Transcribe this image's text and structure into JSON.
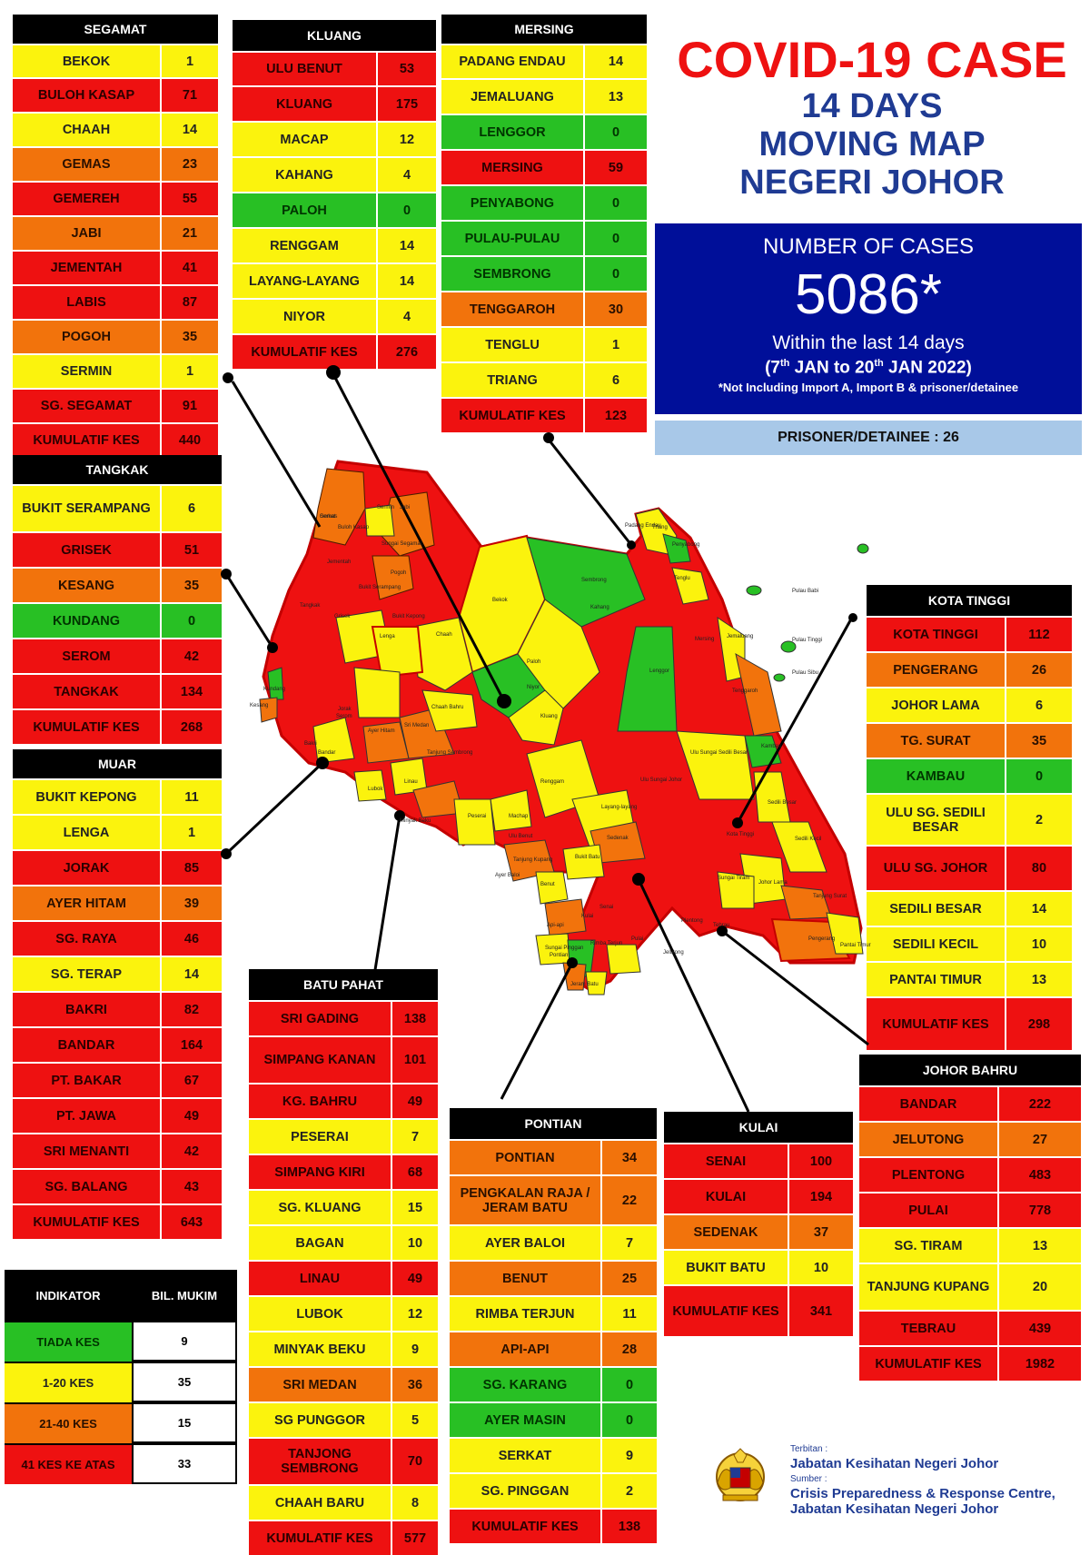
{
  "header": {
    "title": "COVID-19 CASE",
    "subtitle_lines": [
      "14 DAYS",
      "MOVING MAP",
      "NEGERI JOHOR"
    ]
  },
  "summary": {
    "label": "NUMBER OF CASES",
    "count": "5086*",
    "period_label": "Within the last 14 days",
    "date_range": {
      "open": "(7",
      "sup1": "th",
      "mid": " JAN to 20",
      "sup2": "th",
      "close": " JAN 2022)"
    },
    "note": "*Not Including Import A, Import B & prisoner/detainee",
    "prisoner": "PRISONER/DETAINEE : 26"
  },
  "colors": {
    "red": "#ee1111",
    "yellow": "#fbf30d",
    "orange": "#f2730c",
    "green": "#28c024",
    "title_red": "#ee1111",
    "title_blue": "#1f3b93",
    "box_blue": "#000f99",
    "prisoner_bg": "#a8c8e8"
  },
  "districts": {
    "segamat": {
      "title": "SEGAMAT",
      "rows": [
        {
          "name": "BEKOK",
          "value": "1",
          "level": "yellow"
        },
        {
          "name": "BULOH KASAP",
          "value": "71",
          "level": "red"
        },
        {
          "name": "CHAAH",
          "value": "14",
          "level": "yellow"
        },
        {
          "name": "GEMAS",
          "value": "23",
          "level": "orange"
        },
        {
          "name": "GEMEREH",
          "value": "55",
          "level": "red"
        },
        {
          "name": "JABI",
          "value": "21",
          "level": "orange"
        },
        {
          "name": "JEMENTAH",
          "value": "41",
          "level": "red"
        },
        {
          "name": "LABIS",
          "value": "87",
          "level": "red"
        },
        {
          "name": "POGOH",
          "value": "35",
          "level": "orange"
        },
        {
          "name": "SERMIN",
          "value": "1",
          "level": "yellow"
        },
        {
          "name": "SG. SEGAMAT",
          "value": "91",
          "level": "red"
        },
        {
          "name": "KUMULATIF KES",
          "value": "440",
          "level": "total"
        }
      ]
    },
    "kluang": {
      "title": "KLUANG",
      "rows": [
        {
          "name": "ULU BENUT",
          "value": "53",
          "level": "red"
        },
        {
          "name": "KLUANG",
          "value": "175",
          "level": "red"
        },
        {
          "name": "MACAP",
          "value": "12",
          "level": "yellow"
        },
        {
          "name": "KAHANG",
          "value": "4",
          "level": "yellow"
        },
        {
          "name": "PALOH",
          "value": "0",
          "level": "green"
        },
        {
          "name": "RENGGAM",
          "value": "14",
          "level": "yellow"
        },
        {
          "name": "LAYANG-LAYANG",
          "value": "14",
          "level": "yellow"
        },
        {
          "name": "NIYOR",
          "value": "4",
          "level": "yellow"
        },
        {
          "name": "KUMULATIF KES",
          "value": "276",
          "level": "total"
        }
      ]
    },
    "mersing": {
      "title": "MERSING",
      "rows": [
        {
          "name": "PADANG ENDAU",
          "value": "14",
          "level": "yellow"
        },
        {
          "name": "JEMALUANG",
          "value": "13",
          "level": "yellow"
        },
        {
          "name": "LENGGOR",
          "value": "0",
          "level": "green"
        },
        {
          "name": "MERSING",
          "value": "59",
          "level": "red"
        },
        {
          "name": "PENYABONG",
          "value": "0",
          "level": "green"
        },
        {
          "name": "PULAU-PULAU",
          "value": "0",
          "level": "green"
        },
        {
          "name": "SEMBRONG",
          "value": "0",
          "level": "green"
        },
        {
          "name": "TENGGAROH",
          "value": "30",
          "level": "orange"
        },
        {
          "name": "TENGLU",
          "value": "1",
          "level": "yellow"
        },
        {
          "name": "TRIANG",
          "value": "6",
          "level": "yellow"
        },
        {
          "name": "KUMULATIF KES",
          "value": "123",
          "level": "total"
        }
      ]
    },
    "tangkak": {
      "title": "TANGKAK",
      "rows": [
        {
          "name": "BUKIT SERAMPANG",
          "value": "6",
          "level": "yellow"
        },
        {
          "name": "GRISEK",
          "value": "51",
          "level": "red"
        },
        {
          "name": "KESANG",
          "value": "35",
          "level": "orange"
        },
        {
          "name": "KUNDANG",
          "value": "0",
          "level": "green"
        },
        {
          "name": "SEROM",
          "value": "42",
          "level": "red"
        },
        {
          "name": "TANGKAK",
          "value": "134",
          "level": "red"
        },
        {
          "name": "KUMULATIF KES",
          "value": "268",
          "level": "total"
        }
      ]
    },
    "muar": {
      "title": "MUAR",
      "rows": [
        {
          "name": "BUKIT KEPONG",
          "value": "11",
          "level": "yellow"
        },
        {
          "name": "LENGA",
          "value": "1",
          "level": "yellow"
        },
        {
          "name": "JORAK",
          "value": "85",
          "level": "red"
        },
        {
          "name": "AYER HITAM",
          "value": "39",
          "level": "orange"
        },
        {
          "name": "SG. RAYA",
          "value": "46",
          "level": "red"
        },
        {
          "name": "SG. TERAP",
          "value": "14",
          "level": "yellow"
        },
        {
          "name": "BAKRI",
          "value": "82",
          "level": "red"
        },
        {
          "name": "BANDAR",
          "value": "164",
          "level": "red"
        },
        {
          "name": "PT. BAKAR",
          "value": "67",
          "level": "red"
        },
        {
          "name": "PT. JAWA",
          "value": "49",
          "level": "red"
        },
        {
          "name": "SRI MENANTI",
          "value": "42",
          "level": "red"
        },
        {
          "name": "SG. BALANG",
          "value": "43",
          "level": "red"
        },
        {
          "name": "KUMULATIF KES",
          "value": "643",
          "level": "total"
        }
      ]
    },
    "batu_pahat": {
      "title": "BATU PAHAT",
      "rows": [
        {
          "name": "SRI GADING",
          "value": "138",
          "level": "red"
        },
        {
          "name": "SIMPANG KANAN",
          "value": "101",
          "level": "red"
        },
        {
          "name": "KG. BAHRU",
          "value": "49",
          "level": "red"
        },
        {
          "name": "PESERAI",
          "value": "7",
          "level": "yellow"
        },
        {
          "name": "SIMPANG KIRI",
          "value": "68",
          "level": "red"
        },
        {
          "name": "SG. KLUANG",
          "value": "15",
          "level": "yellow"
        },
        {
          "name": "BAGAN",
          "value": "10",
          "level": "yellow"
        },
        {
          "name": "LINAU",
          "value": "49",
          "level": "red"
        },
        {
          "name": "LUBOK",
          "value": "12",
          "level": "yellow"
        },
        {
          "name": "MINYAK BEKU",
          "value": "9",
          "level": "yellow"
        },
        {
          "name": "SRI MEDAN",
          "value": "36",
          "level": "orange"
        },
        {
          "name": "SG PUNGGOR",
          "value": "5",
          "level": "yellow"
        },
        {
          "name": "TANJONG SEMBRONG",
          "value": "70",
          "level": "red"
        },
        {
          "name": "CHAAH BARU",
          "value": "8",
          "level": "yellow"
        },
        {
          "name": "KUMULATIF KES",
          "value": "577",
          "level": "total"
        }
      ]
    },
    "pontian": {
      "title": "PONTIAN",
      "rows": [
        {
          "name": "PONTIAN",
          "value": "34",
          "level": "orange"
        },
        {
          "name": "PENGKALAN RAJA / JERAM BATU",
          "value": "22",
          "level": "orange"
        },
        {
          "name": "AYER BALOI",
          "value": "7",
          "level": "yellow"
        },
        {
          "name": "BENUT",
          "value": "25",
          "level": "orange"
        },
        {
          "name": "RIMBA TERJUN",
          "value": "11",
          "level": "yellow"
        },
        {
          "name": "API-API",
          "value": "28",
          "level": "orange"
        },
        {
          "name": "SG. KARANG",
          "value": "0",
          "level": "green"
        },
        {
          "name": "AYER MASIN",
          "value": "0",
          "level": "green"
        },
        {
          "name": "SERKAT",
          "value": "9",
          "level": "yellow"
        },
        {
          "name": "SG. PINGGAN",
          "value": "2",
          "level": "yellow"
        },
        {
          "name": "KUMULATIF KES",
          "value": "138",
          "level": "total"
        }
      ]
    },
    "kulai": {
      "title": "KULAI",
      "rows": [
        {
          "name": "SENAI",
          "value": "100",
          "level": "red"
        },
        {
          "name": "KULAI",
          "value": "194",
          "level": "red"
        },
        {
          "name": "SEDENAK",
          "value": "37",
          "level": "orange"
        },
        {
          "name": "BUKIT BATU",
          "value": "10",
          "level": "yellow"
        },
        {
          "name": "KUMULATIF KES",
          "value": "341",
          "level": "total"
        }
      ]
    },
    "kota_tinggi": {
      "title": "KOTA TINGGI",
      "rows": [
        {
          "name": "KOTA TINGGI",
          "value": "112",
          "level": "red"
        },
        {
          "name": "PENGERANG",
          "value": "26",
          "level": "orange"
        },
        {
          "name": "JOHOR LAMA",
          "value": "6",
          "level": "yellow"
        },
        {
          "name": "TG. SURAT",
          "value": "35",
          "level": "orange"
        },
        {
          "name": "KAMBAU",
          "value": "0",
          "level": "green"
        },
        {
          "name": "ULU SG. SEDILI BESAR",
          "value": "2",
          "level": "yellow"
        },
        {
          "name": "ULU  SG. JOHOR",
          "value": "80",
          "level": "red"
        },
        {
          "name": "SEDILI BESAR",
          "value": "14",
          "level": "yellow"
        },
        {
          "name": "SEDILI KECIL",
          "value": "10",
          "level": "yellow"
        },
        {
          "name": "PANTAI TIMUR",
          "value": "13",
          "level": "yellow"
        },
        {
          "name": "KUMULATIF KES",
          "value": "298",
          "level": "total"
        }
      ]
    },
    "johor_bahru": {
      "title": "JOHOR BAHRU",
      "rows": [
        {
          "name": "BANDAR",
          "value": "222",
          "level": "red"
        },
        {
          "name": "JELUTONG",
          "value": "27",
          "level": "orange"
        },
        {
          "name": "PLENTONG",
          "value": "483",
          "level": "red"
        },
        {
          "name": "PULAI",
          "value": "778",
          "level": "red"
        },
        {
          "name": "SG. TIRAM",
          "value": "13",
          "level": "yellow"
        },
        {
          "name": "TANJUNG KUPANG",
          "value": "20",
          "level": "yellow"
        },
        {
          "name": "TEBRAU",
          "value": "439",
          "level": "red"
        },
        {
          "name": "KUMULATIF KES",
          "value": "1982",
          "level": "total"
        }
      ]
    }
  },
  "legend": {
    "col1": "INDIKATOR",
    "col2": "BIL. MUKIM",
    "rows": [
      {
        "label": "TIADA KES",
        "count": "9",
        "level": "green"
      },
      {
        "label": "1-20 KES",
        "count": "35",
        "level": "yellow"
      },
      {
        "label": "21-40 KES",
        "count": "15",
        "level": "orange"
      },
      {
        "label": "41 KES KE ATAS",
        "count": "33",
        "level": "red"
      }
    ]
  },
  "map_labels": [
    "Gemas",
    "Buloh Kasap",
    "Sermin",
    "Jabi",
    "Jementah",
    "Sungai Segamat",
    "Pogoh",
    "Bukit Serampang",
    "Tangkak",
    "Grisek",
    "Bukit Kepong",
    "Lenga",
    "Chaah",
    "Bekok",
    "Sembrong",
    "Padang Endau",
    "Triang",
    "Penyabong",
    "Tenglu",
    "Pulau Babi",
    "Pulau Tinggi",
    "Pulau Sibu",
    "Jemaluang",
    "Tenggaroh",
    "Mersing",
    "Lenggor",
    "Kahang",
    "Paloh",
    "Niyor",
    "Kluang",
    "Chaah Bahru",
    "Sri Medan",
    "Tanjung Sembrong",
    "Ayer Hitam",
    "Jorak",
    "Serom",
    "Kundang",
    "Kesang",
    "Bakri",
    "Bandar",
    "Linau",
    "Lubok",
    "Minyak Beku",
    "Peserai",
    "Renggam",
    "Machap",
    "Layang-layang",
    "Ulu Benut",
    "Kambau",
    "Ulu Sungai Sedili Besar",
    "Ulu Sungai Johor",
    "Sedili Besar",
    "Sedili Kecil",
    "Kota Tinggi",
    "Johor Lama",
    "Tanjung Surat",
    "Pengerang",
    "Pantai Timur",
    "Sungai Tiram",
    "Sedenak",
    "Bukit Batu",
    "Senai",
    "Kulai",
    "Tebrau",
    "Plentong",
    "Pulai",
    "Jelutong",
    "Tanjung Kupang",
    "Benut",
    "Ayer Baloi",
    "Sungai Pinggan",
    "Api-api",
    "Pontian",
    "Rimba Terjun",
    "Jeram Batu",
    "Serkat"
  ],
  "footer": {
    "terbitan_label": "Terbitan :",
    "terbitan": "Jabatan Kesihatan Negeri Johor",
    "sumber_label": "Sumber :",
    "sumber_lines": [
      "Crisis Preparedness & Response Centre,",
      "Jabatan Kesihatan Negeri Johor"
    ]
  }
}
